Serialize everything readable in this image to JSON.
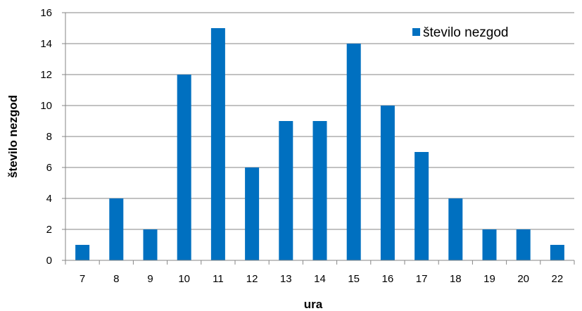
{
  "chart_data": {
    "type": "bar",
    "categories": [
      "7",
      "8",
      "9",
      "10",
      "11",
      "12",
      "13",
      "14",
      "15",
      "16",
      "17",
      "18",
      "19",
      "20",
      "22"
    ],
    "series": [
      {
        "name": "število nezgod",
        "values": [
          1,
          4,
          2,
          12,
          15,
          6,
          9,
          9,
          14,
          10,
          7,
          4,
          2,
          2,
          1
        ],
        "color": "#0070C0"
      }
    ],
    "xlabel": "ura",
    "ylabel": "število nezgod",
    "ylim": [
      0,
      16
    ],
    "yticks": [
      "0",
      "2",
      "4",
      "6",
      "8",
      "10",
      "12",
      "14",
      "16"
    ],
    "grid": true,
    "legend_position": "top-right"
  }
}
